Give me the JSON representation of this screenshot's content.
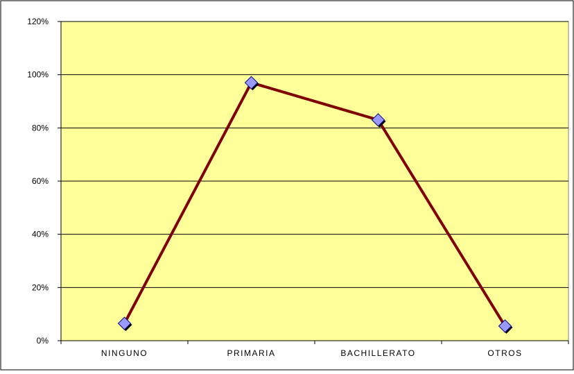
{
  "chart_data": {
    "type": "line",
    "categories": [
      "NINGUNO",
      "PRIMARIA",
      "BACHILLERATO",
      "OTROS"
    ],
    "series": [
      {
        "values": [
          6.5,
          97,
          83,
          5.5
        ]
      }
    ],
    "y_ticks": [
      "0%",
      "20%",
      "40%",
      "60%",
      "80%",
      "100%",
      "120%"
    ],
    "y_tick_values": [
      0,
      20,
      40,
      60,
      80,
      100,
      120
    ],
    "ylim": [
      0,
      120
    ],
    "grid": true,
    "legend": "none",
    "colors": {
      "plot_background": "#ffff99",
      "line": "#800000",
      "marker_fill": "#9999ff",
      "marker_stroke": "#000080",
      "gridline": "#000000"
    }
  }
}
